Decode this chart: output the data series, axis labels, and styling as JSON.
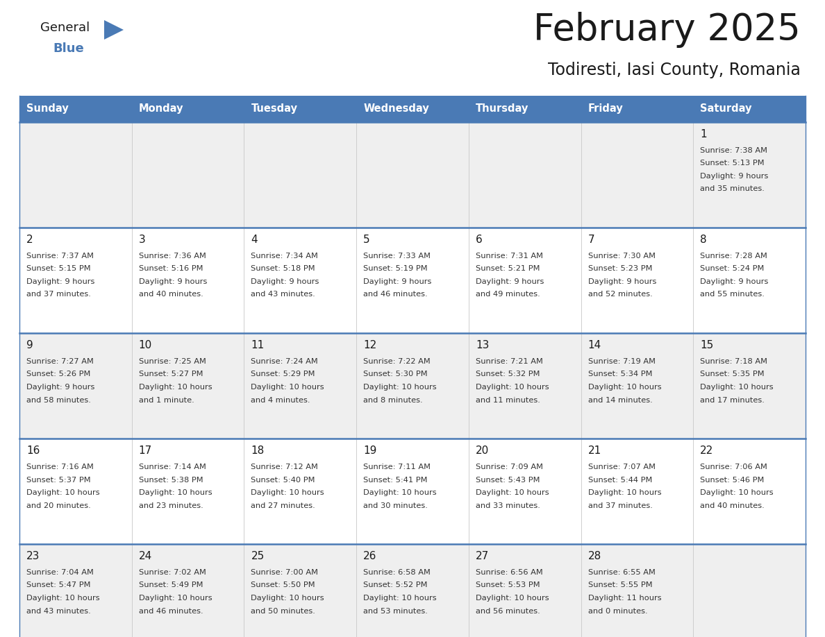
{
  "title": "February 2025",
  "subtitle": "Todiresti, Iasi County, Romania",
  "header_bg": "#4a7ab5",
  "header_text_color": "#ffffff",
  "row_bg_even": "#efefef",
  "row_bg_odd": "#ffffff",
  "border_color": "#4a7ab5",
  "cell_border_color": "#b0c4de",
  "day_names": [
    "Sunday",
    "Monday",
    "Tuesday",
    "Wednesday",
    "Thursday",
    "Friday",
    "Saturday"
  ],
  "days": [
    {
      "day": 1,
      "col": 6,
      "row": 0,
      "sunrise": "7:38 AM",
      "sunset": "5:13 PM",
      "daylight": "9 hours and 35 minutes"
    },
    {
      "day": 2,
      "col": 0,
      "row": 1,
      "sunrise": "7:37 AM",
      "sunset": "5:15 PM",
      "daylight": "9 hours and 37 minutes"
    },
    {
      "day": 3,
      "col": 1,
      "row": 1,
      "sunrise": "7:36 AM",
      "sunset": "5:16 PM",
      "daylight": "9 hours and 40 minutes"
    },
    {
      "day": 4,
      "col": 2,
      "row": 1,
      "sunrise": "7:34 AM",
      "sunset": "5:18 PM",
      "daylight": "9 hours and 43 minutes"
    },
    {
      "day": 5,
      "col": 3,
      "row": 1,
      "sunrise": "7:33 AM",
      "sunset": "5:19 PM",
      "daylight": "9 hours and 46 minutes"
    },
    {
      "day": 6,
      "col": 4,
      "row": 1,
      "sunrise": "7:31 AM",
      "sunset": "5:21 PM",
      "daylight": "9 hours and 49 minutes"
    },
    {
      "day": 7,
      "col": 5,
      "row": 1,
      "sunrise": "7:30 AM",
      "sunset": "5:23 PM",
      "daylight": "9 hours and 52 minutes"
    },
    {
      "day": 8,
      "col": 6,
      "row": 1,
      "sunrise": "7:28 AM",
      "sunset": "5:24 PM",
      "daylight": "9 hours and 55 minutes"
    },
    {
      "day": 9,
      "col": 0,
      "row": 2,
      "sunrise": "7:27 AM",
      "sunset": "5:26 PM",
      "daylight": "9 hours and 58 minutes"
    },
    {
      "day": 10,
      "col": 1,
      "row": 2,
      "sunrise": "7:25 AM",
      "sunset": "5:27 PM",
      "daylight": "10 hours and 1 minute"
    },
    {
      "day": 11,
      "col": 2,
      "row": 2,
      "sunrise": "7:24 AM",
      "sunset": "5:29 PM",
      "daylight": "10 hours and 4 minutes"
    },
    {
      "day": 12,
      "col": 3,
      "row": 2,
      "sunrise": "7:22 AM",
      "sunset": "5:30 PM",
      "daylight": "10 hours and 8 minutes"
    },
    {
      "day": 13,
      "col": 4,
      "row": 2,
      "sunrise": "7:21 AM",
      "sunset": "5:32 PM",
      "daylight": "10 hours and 11 minutes"
    },
    {
      "day": 14,
      "col": 5,
      "row": 2,
      "sunrise": "7:19 AM",
      "sunset": "5:34 PM",
      "daylight": "10 hours and 14 minutes"
    },
    {
      "day": 15,
      "col": 6,
      "row": 2,
      "sunrise": "7:18 AM",
      "sunset": "5:35 PM",
      "daylight": "10 hours and 17 minutes"
    },
    {
      "day": 16,
      "col": 0,
      "row": 3,
      "sunrise": "7:16 AM",
      "sunset": "5:37 PM",
      "daylight": "10 hours and 20 minutes"
    },
    {
      "day": 17,
      "col": 1,
      "row": 3,
      "sunrise": "7:14 AM",
      "sunset": "5:38 PM",
      "daylight": "10 hours and 23 minutes"
    },
    {
      "day": 18,
      "col": 2,
      "row": 3,
      "sunrise": "7:12 AM",
      "sunset": "5:40 PM",
      "daylight": "10 hours and 27 minutes"
    },
    {
      "day": 19,
      "col": 3,
      "row": 3,
      "sunrise": "7:11 AM",
      "sunset": "5:41 PM",
      "daylight": "10 hours and 30 minutes"
    },
    {
      "day": 20,
      "col": 4,
      "row": 3,
      "sunrise": "7:09 AM",
      "sunset": "5:43 PM",
      "daylight": "10 hours and 33 minutes"
    },
    {
      "day": 21,
      "col": 5,
      "row": 3,
      "sunrise": "7:07 AM",
      "sunset": "5:44 PM",
      "daylight": "10 hours and 37 minutes"
    },
    {
      "day": 22,
      "col": 6,
      "row": 3,
      "sunrise": "7:06 AM",
      "sunset": "5:46 PM",
      "daylight": "10 hours and 40 minutes"
    },
    {
      "day": 23,
      "col": 0,
      "row": 4,
      "sunrise": "7:04 AM",
      "sunset": "5:47 PM",
      "daylight": "10 hours and 43 minutes"
    },
    {
      "day": 24,
      "col": 1,
      "row": 4,
      "sunrise": "7:02 AM",
      "sunset": "5:49 PM",
      "daylight": "10 hours and 46 minutes"
    },
    {
      "day": 25,
      "col": 2,
      "row": 4,
      "sunrise": "7:00 AM",
      "sunset": "5:50 PM",
      "daylight": "10 hours and 50 minutes"
    },
    {
      "day": 26,
      "col": 3,
      "row": 4,
      "sunrise": "6:58 AM",
      "sunset": "5:52 PM",
      "daylight": "10 hours and 53 minutes"
    },
    {
      "day": 27,
      "col": 4,
      "row": 4,
      "sunrise": "6:56 AM",
      "sunset": "5:53 PM",
      "daylight": "10 hours and 56 minutes"
    },
    {
      "day": 28,
      "col": 5,
      "row": 4,
      "sunrise": "6:55 AM",
      "sunset": "5:55 PM",
      "daylight": "11 hours and 0 minutes"
    }
  ],
  "logo_color_general": "#1a1a1a",
  "logo_color_blue": "#4a7ab5",
  "logo_triangle_color": "#4a7ab5",
  "figw": 11.88,
  "figh": 9.18,
  "dpi": 100
}
